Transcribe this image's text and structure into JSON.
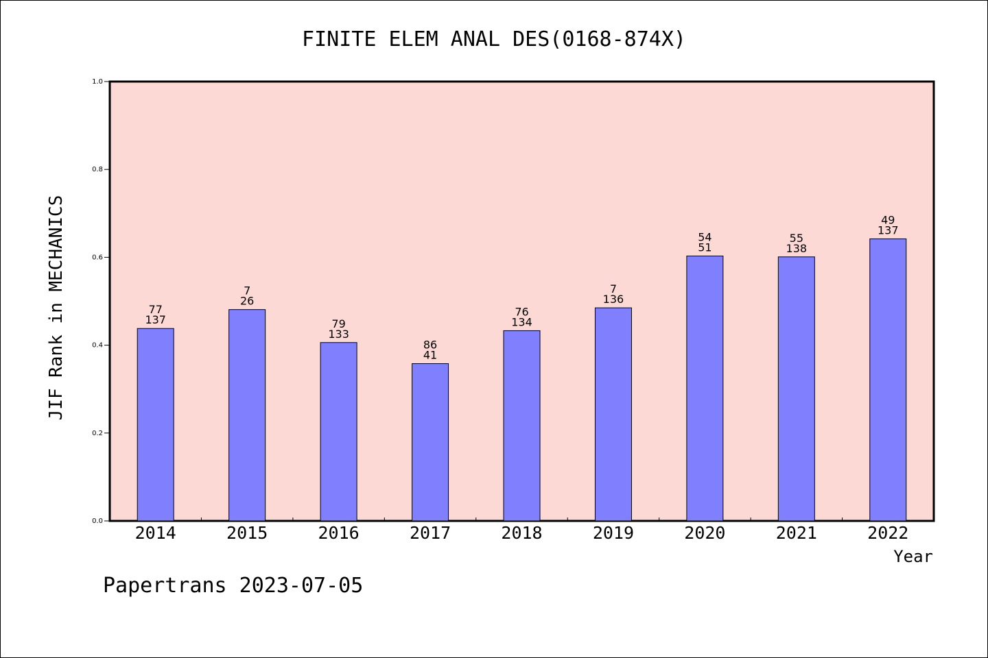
{
  "chart_data": {
    "type": "bar",
    "title": "FINITE ELEM ANAL DES(0168-874X)",
    "xlabel": "Year",
    "ylabel": "JIF Rank in MECHANICS",
    "ylim": [
      0,
      1.0
    ],
    "yticks": [
      "0.0",
      "0.2",
      "0.4",
      "0.6",
      "0.8",
      "1.0"
    ],
    "categories": [
      "2014",
      "2015",
      "2016",
      "2017",
      "2018",
      "2019",
      "2020",
      "2021",
      "2022"
    ],
    "values": [
      0.438,
      0.481,
      0.406,
      0.358,
      0.433,
      0.485,
      0.603,
      0.601,
      0.642
    ],
    "rank_labels": [
      "77",
      "7",
      "79",
      "86",
      "76",
      "7",
      "54",
      "55",
      "49"
    ],
    "total_labels": [
      "137",
      "26",
      "133",
      "41",
      "134",
      "136",
      "51",
      "138",
      "137"
    ],
    "grid": false,
    "colors": {
      "plot_bg": "#fdd9d6",
      "bar": "#8080ff",
      "axis": "#000000"
    }
  },
  "footer": {
    "watermark": "Papertrans 2023-07-05"
  }
}
